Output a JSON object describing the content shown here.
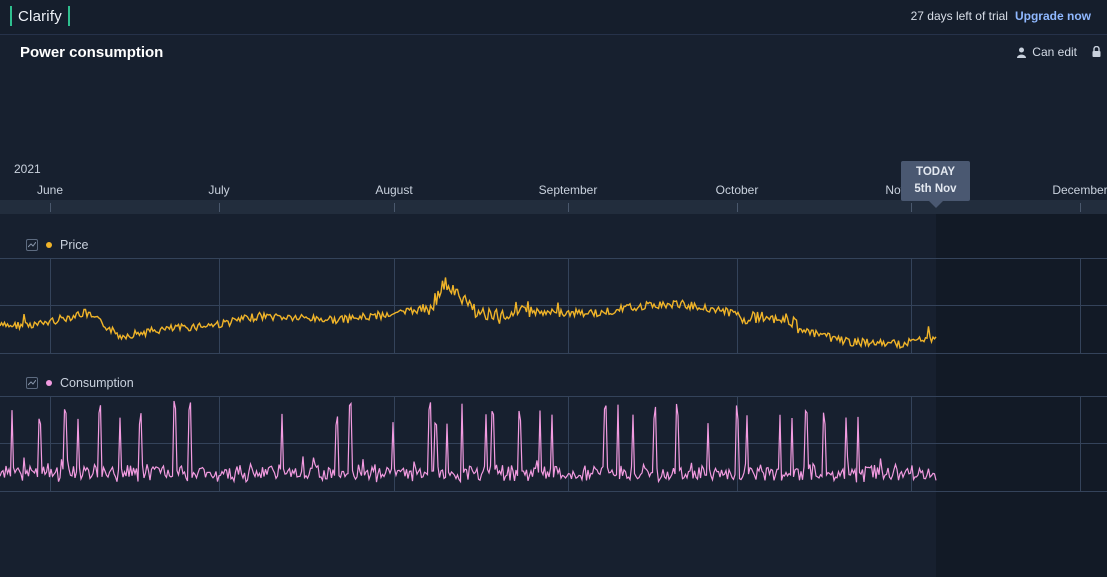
{
  "app": {
    "logo": "Clarify"
  },
  "trial": {
    "text": "27 days left of trial",
    "upgrade": "Upgrade now"
  },
  "page": {
    "title": "Power consumption",
    "can_edit": "Can edit"
  },
  "timeline": {
    "year": "2021",
    "months": [
      "June",
      "July",
      "August",
      "September",
      "October",
      "Nov",
      "December"
    ],
    "today_label": "TODAY",
    "today_date": "5th Nov"
  },
  "items": [
    {
      "label": "Price",
      "color": "#f0b429"
    },
    {
      "label": "Consumption",
      "color": "#f29be0"
    }
  ],
  "icons": [
    "user-icon",
    "lock-icon",
    "line-chart-icon"
  ]
}
